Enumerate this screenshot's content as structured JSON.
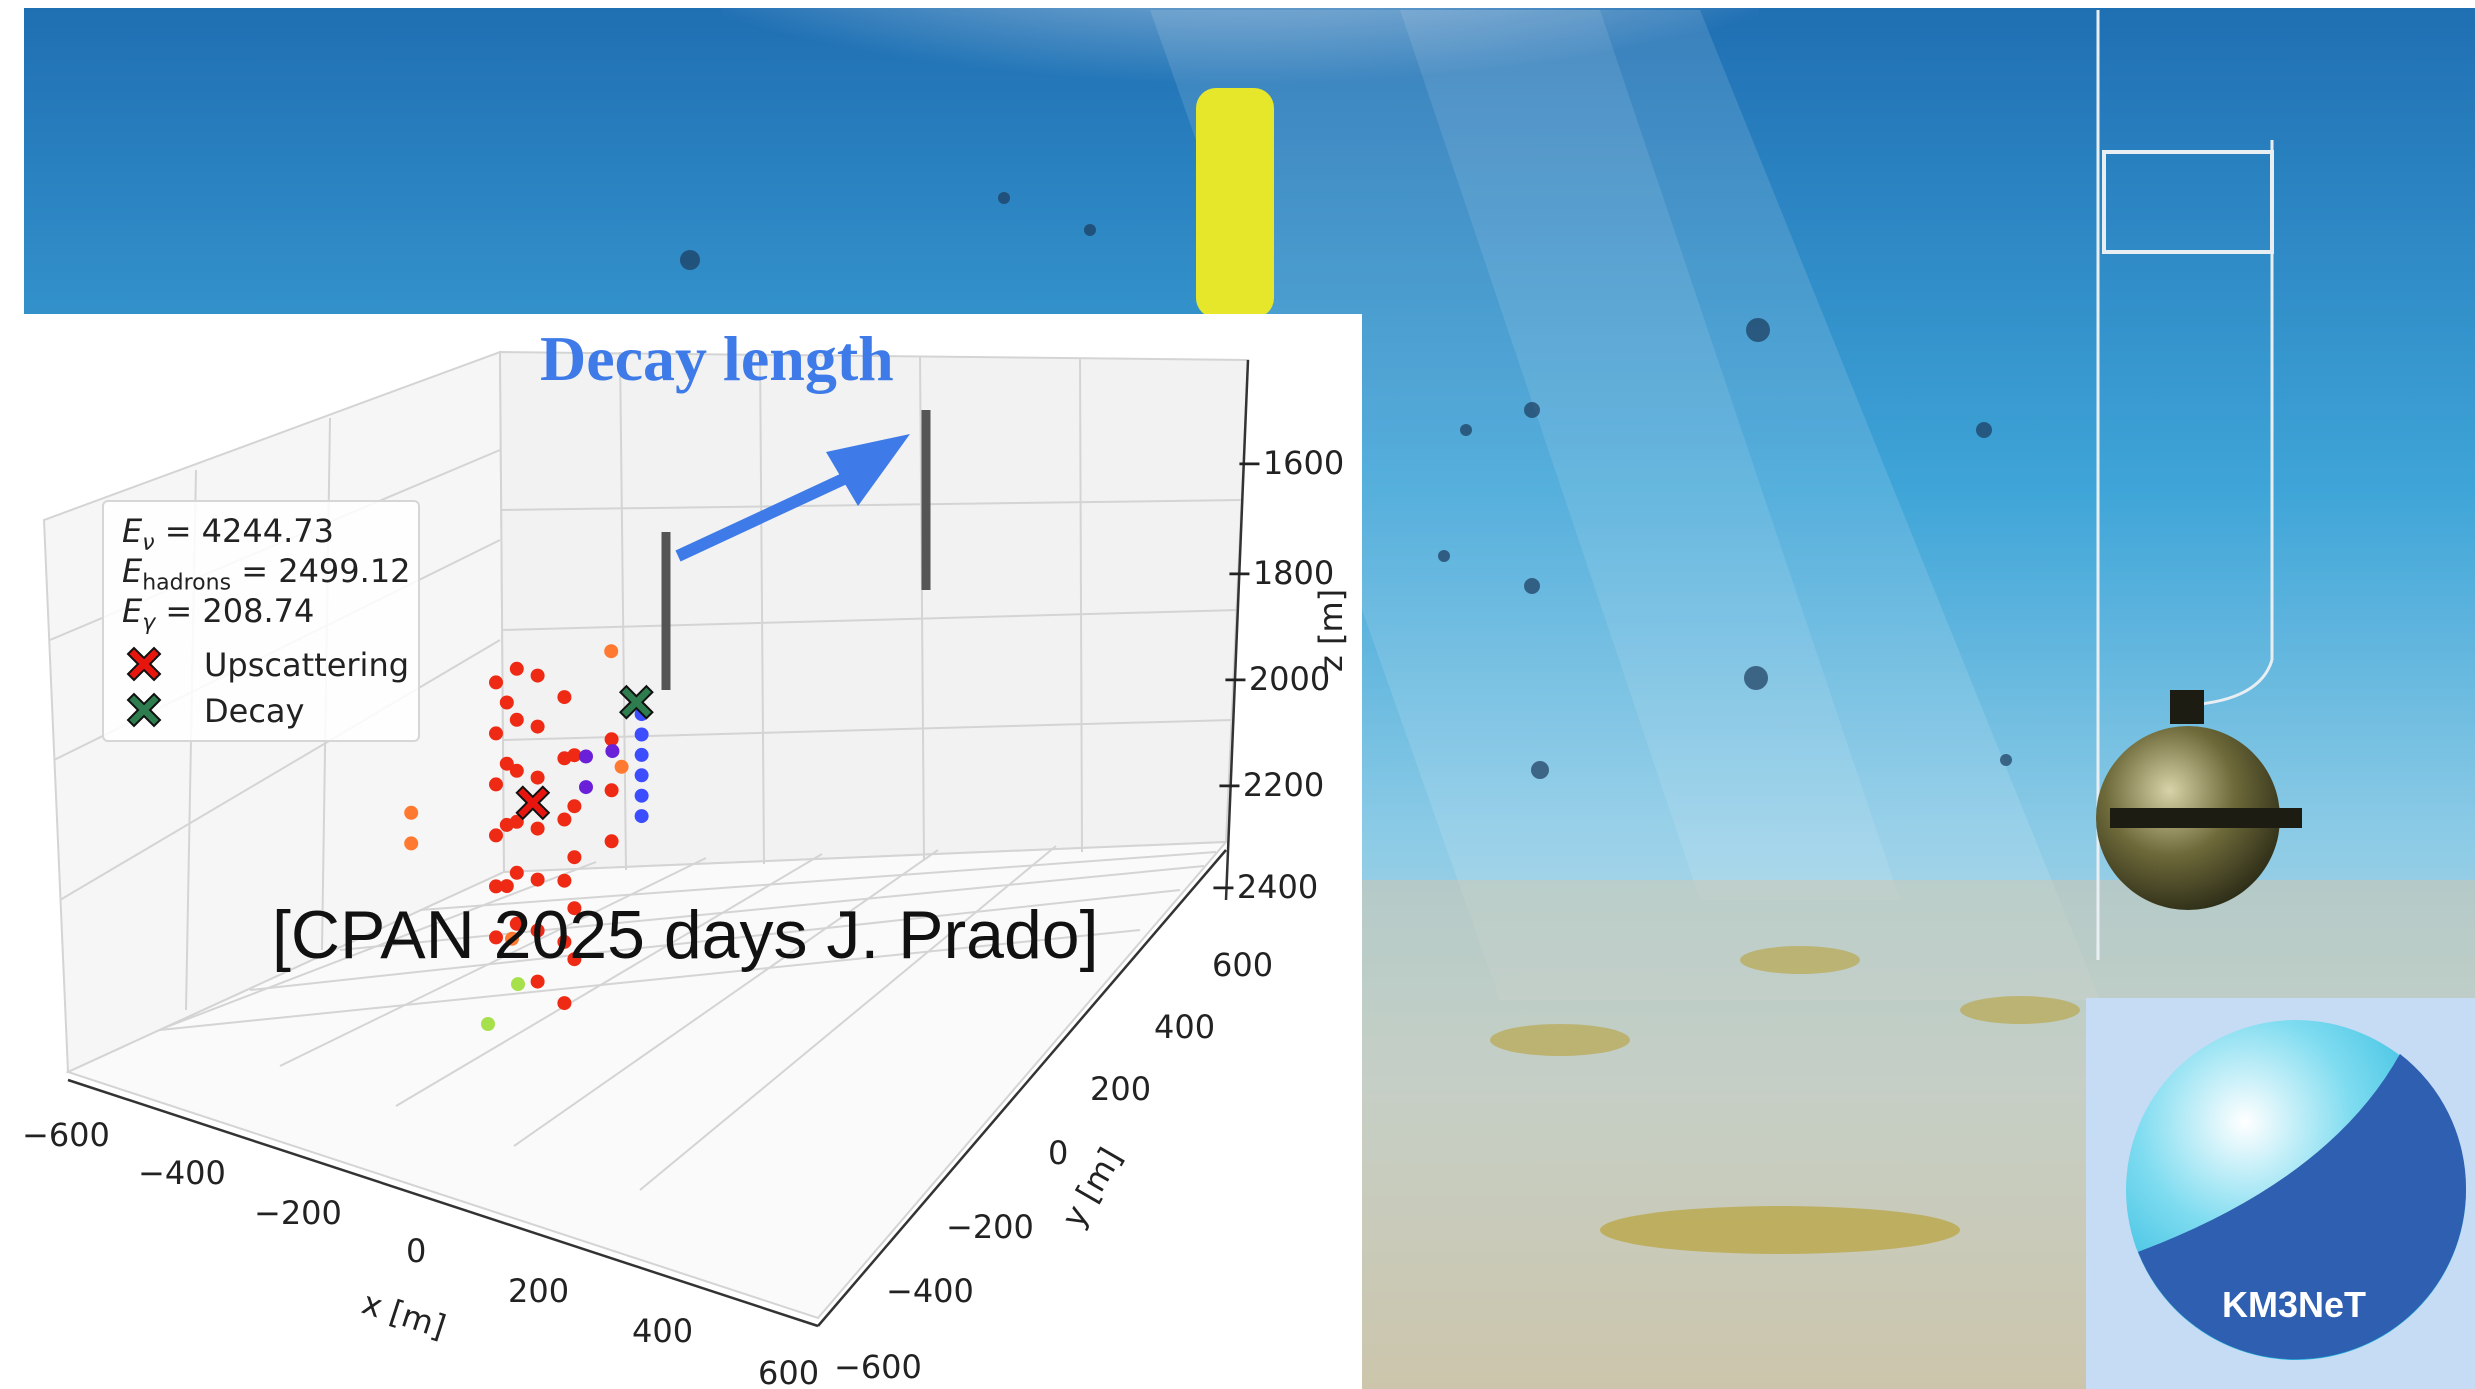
{
  "overlay": {
    "title": "Decay length",
    "credit": "[CPAN 2025 days J. Prado]",
    "logo_text": "KM3NeT"
  },
  "legend": {
    "energies": [
      {
        "symbol": "E",
        "sub": "ν",
        "value": "= 4244.73"
      },
      {
        "symbol": "E",
        "sub": "hadrons",
        "value": "= 2499.12"
      },
      {
        "symbol": "E",
        "sub": "γ",
        "value": "= 208.74"
      }
    ],
    "entries": [
      {
        "label": "Upscattering",
        "color": "#e8150f"
      },
      {
        "label": "Decay",
        "color": "#2e7d4f"
      }
    ]
  },
  "colors": {
    "water": "#2a8fcb",
    "arrow": "#3e7be8",
    "buoy": "#e6e62a",
    "upscattering": "#e8150f",
    "decay": "#2e7d4f",
    "hits_red": "#ee2a14",
    "hits_orange": "#ff7a30",
    "hits_blue": "#3b4dff",
    "hits_purple": "#6a20d8",
    "hits_green": "#a6e04a"
  },
  "chart_data": {
    "type": "scatter",
    "title": "",
    "xlabel": "x [m]",
    "ylabel": "y [m]",
    "zlabel": "z [m]",
    "xlim": [
      -600,
      600
    ],
    "ylim": [
      -600,
      600
    ],
    "zlim": [
      -2400,
      -1600
    ],
    "x_ticks": [
      "−600",
      "−400",
      "−200",
      "0",
      "200",
      "400",
      "600"
    ],
    "y_ticks": [
      "−600",
      "−400",
      "−200",
      "0",
      "200",
      "400",
      "600"
    ],
    "z_ticks": [
      "−1600",
      "−1800",
      "−2000",
      "−2200",
      "−2400"
    ],
    "grid": true,
    "legend_position": "upper-left",
    "markers": [
      {
        "name": "Upscattering",
        "x": -20,
        "y": 60,
        "z": -2010
      },
      {
        "name": "Decay",
        "x": 260,
        "y": 210,
        "z": -1850
      }
    ],
    "hits": [
      {
        "color": "red",
        "x": -80,
        "y": 80,
        "z": -1900
      },
      {
        "color": "red",
        "x": -80,
        "y": 80,
        "z": -1950
      },
      {
        "color": "red",
        "x": -80,
        "y": 80,
        "z": -2000
      },
      {
        "color": "red",
        "x": -80,
        "y": 80,
        "z": -2050
      },
      {
        "color": "red",
        "x": -80,
        "y": 80,
        "z": -2100
      },
      {
        "color": "red",
        "x": -80,
        "y": 80,
        "z": -2150
      },
      {
        "color": "red",
        "x": -70,
        "y": 60,
        "z": -1920
      },
      {
        "color": "red",
        "x": -70,
        "y": 60,
        "z": -1980
      },
      {
        "color": "red",
        "x": -70,
        "y": 60,
        "z": -2040
      },
      {
        "color": "red",
        "x": -70,
        "y": 60,
        "z": -2100
      },
      {
        "color": "red",
        "x": -40,
        "y": 80,
        "z": -1880
      },
      {
        "color": "red",
        "x": -40,
        "y": 80,
        "z": -1930
      },
      {
        "color": "red",
        "x": -40,
        "y": 80,
        "z": -1980
      },
      {
        "color": "red",
        "x": -40,
        "y": 80,
        "z": -2030
      },
      {
        "color": "red",
        "x": -40,
        "y": 80,
        "z": -2080
      },
      {
        "color": "red",
        "x": -40,
        "y": 80,
        "z": -2130
      },
      {
        "color": "red",
        "x": 0,
        "y": 80,
        "z": -1880
      },
      {
        "color": "red",
        "x": 0,
        "y": 80,
        "z": -1930
      },
      {
        "color": "red",
        "x": 0,
        "y": 80,
        "z": -1980
      },
      {
        "color": "red",
        "x": 0,
        "y": 80,
        "z": -2030
      },
      {
        "color": "red",
        "x": 0,
        "y": 80,
        "z": -2080
      },
      {
        "color": "red",
        "x": 0,
        "y": 80,
        "z": -2130
      },
      {
        "color": "red",
        "x": 0,
        "y": 80,
        "z": -2180
      },
      {
        "color": "red",
        "x": 30,
        "y": 40,
        "z": -1900
      },
      {
        "color": "red",
        "x": 30,
        "y": 40,
        "z": -1960
      },
      {
        "color": "red",
        "x": 30,
        "y": 40,
        "z": -2020
      },
      {
        "color": "red",
        "x": 30,
        "y": 40,
        "z": -2080
      },
      {
        "color": "red",
        "x": 30,
        "y": 40,
        "z": -2140
      },
      {
        "color": "red",
        "x": 30,
        "y": 40,
        "z": -2200
      },
      {
        "color": "red",
        "x": 60,
        "y": 60,
        "z": -1950
      },
      {
        "color": "red",
        "x": 60,
        "y": 60,
        "z": -2000
      },
      {
        "color": "red",
        "x": 60,
        "y": 60,
        "z": -2050
      },
      {
        "color": "red",
        "x": 60,
        "y": 60,
        "z": -2100
      },
      {
        "color": "red",
        "x": 60,
        "y": 60,
        "z": -2150
      },
      {
        "color": "red",
        "x": 110,
        "y": 20,
        "z": -1930
      },
      {
        "color": "red",
        "x": 110,
        "y": 20,
        "z": -1980
      },
      {
        "color": "red",
        "x": 110,
        "y": 20,
        "z": -2030
      },
      {
        "color": "orange",
        "x": -200,
        "y": 160,
        "z": -2040
      },
      {
        "color": "orange",
        "x": -200,
        "y": 160,
        "z": -2070
      },
      {
        "color": "orange",
        "x": 120,
        "y": 40,
        "z": -1840
      },
      {
        "color": "orange",
        "x": 140,
        "y": 40,
        "z": -1950
      },
      {
        "color": "orange",
        "x": -60,
        "y": 60,
        "z": -2150
      },
      {
        "color": "green",
        "x": -70,
        "y": 20,
        "z": -2200
      },
      {
        "color": "green",
        "x": -160,
        "y": -40,
        "z": -2260
      },
      {
        "color": "purple",
        "x": 190,
        "y": 260,
        "z": -1910
      },
      {
        "color": "purple",
        "x": 190,
        "y": 260,
        "z": -1940
      },
      {
        "color": "purple",
        "x": 230,
        "y": 240,
        "z": -1900
      },
      {
        "color": "blue",
        "x": 270,
        "y": 210,
        "z": -1860
      },
      {
        "color": "blue",
        "x": 270,
        "y": 210,
        "z": -1880
      },
      {
        "color": "blue",
        "x": 270,
        "y": 210,
        "z": -1900
      },
      {
        "color": "blue",
        "x": 270,
        "y": 210,
        "z": -1920
      },
      {
        "color": "blue",
        "x": 270,
        "y": 210,
        "z": -1940
      },
      {
        "color": "blue",
        "x": 270,
        "y": 210,
        "z": -1960
      }
    ],
    "annotation": "Decay length"
  }
}
